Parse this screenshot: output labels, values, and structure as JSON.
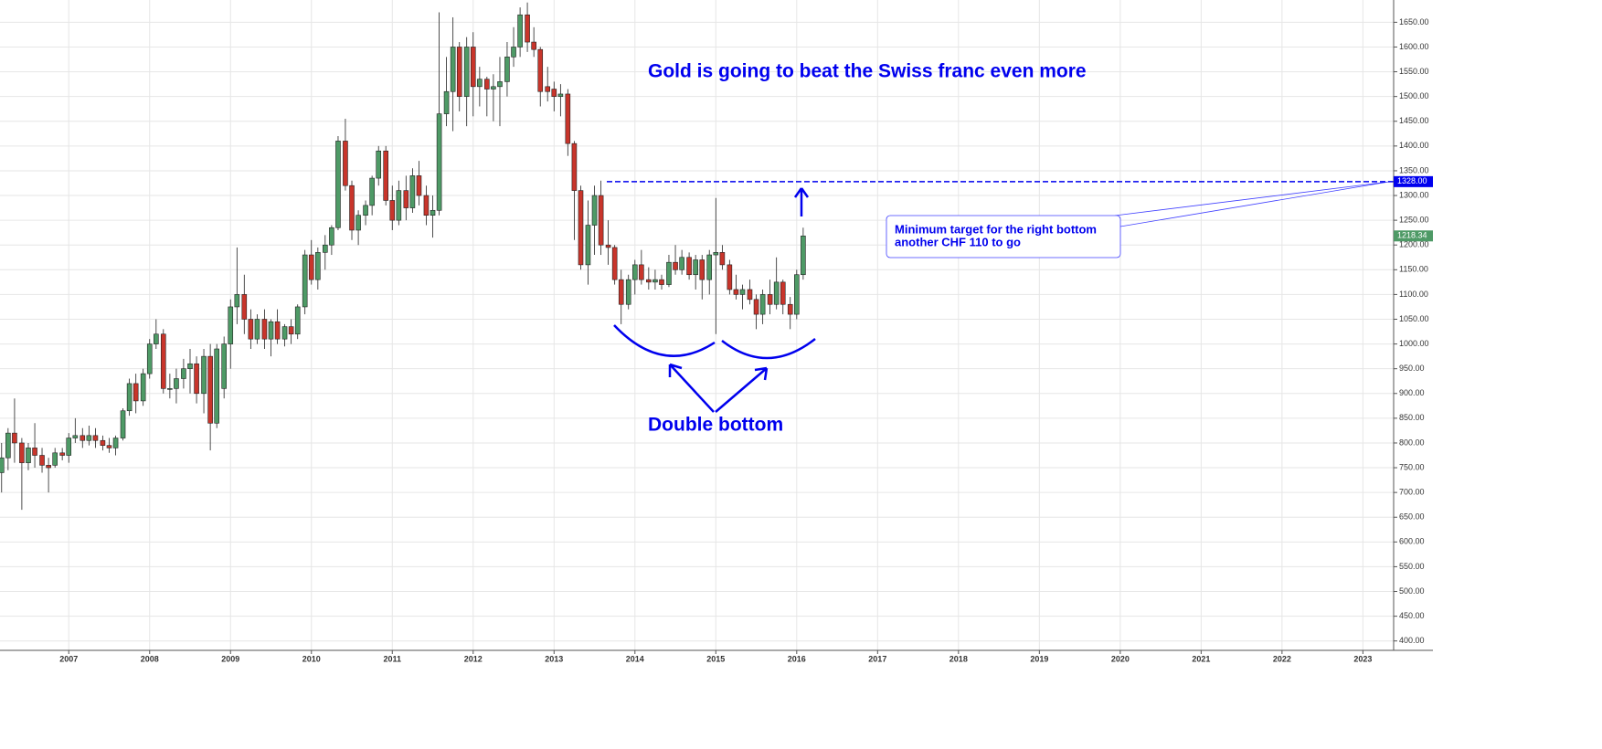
{
  "chart_data": {
    "type": "candlestick",
    "title": "Gold is going to beat the Swiss franc even more",
    "annotations": {
      "pattern": "Double bottom",
      "target_note": [
        "Minimum target for the right bottom",
        "another CHF 110 to go"
      ]
    },
    "target_line": {
      "value": 1328,
      "label": "1328.00",
      "color": "#0000ee"
    },
    "last_price": {
      "value": 1218.34,
      "label": "1218.34",
      "color": "#4e9a66"
    },
    "up_color": "#4e9a66",
    "down_color": "#c8352b",
    "grid": true,
    "xlim": [
      2006.15,
      2023.38
    ],
    "xticks": [
      2007,
      2008,
      2009,
      2010,
      2011,
      2012,
      2013,
      2014,
      2015,
      2016,
      2017,
      2018,
      2019,
      2020,
      2021,
      2022,
      2023
    ],
    "ylim": [
      381,
      1695
    ],
    "yticks": [
      {
        "value": 400,
        "label": "400.00"
      },
      {
        "value": 450,
        "label": "450.00"
      },
      {
        "value": 500,
        "label": "500.00"
      },
      {
        "value": 550,
        "label": "550.00"
      },
      {
        "value": 600,
        "label": "600.00"
      },
      {
        "value": 650,
        "label": "650.00"
      },
      {
        "value": 700,
        "label": "700.00"
      },
      {
        "value": 750,
        "label": "750.00"
      },
      {
        "value": 800,
        "label": "800.00"
      },
      {
        "value": 850,
        "label": "850.00"
      },
      {
        "value": 900,
        "label": "900.00"
      },
      {
        "value": 950,
        "label": "950.00"
      },
      {
        "value": 1000,
        "label": "1000.00"
      },
      {
        "value": 1050,
        "label": "1050.00"
      },
      {
        "value": 1100,
        "label": "1100.00"
      },
      {
        "value": 1150,
        "label": "1150.00"
      },
      {
        "value": 1200,
        "label": "1200.00"
      },
      {
        "value": 1250,
        "label": "1250.00"
      },
      {
        "value": 1300,
        "label": "1300.00"
      },
      {
        "value": 1350,
        "label": "1350.00"
      },
      {
        "value": 1400,
        "label": "1400.00"
      },
      {
        "value": 1450,
        "label": "1450.00"
      },
      {
        "value": 1500,
        "label": "1500.00"
      },
      {
        "value": 1550,
        "label": "1550.00"
      },
      {
        "value": 1600,
        "label": "1600.00"
      },
      {
        "value": 1650,
        "label": "1650.00"
      }
    ],
    "x": [
      2006.17,
      2006.25,
      2006.33,
      2006.42,
      2006.5,
      2006.58,
      2006.67,
      2006.75,
      2006.83,
      2006.92,
      2007.0,
      2007.08,
      2007.17,
      2007.25,
      2007.33,
      2007.42,
      2007.5,
      2007.58,
      2007.67,
      2007.75,
      2007.83,
      2007.92,
      2008.0,
      2008.08,
      2008.17,
      2008.25,
      2008.33,
      2008.42,
      2008.5,
      2008.58,
      2008.67,
      2008.75,
      2008.83,
      2008.92,
      2009.0,
      2009.08,
      2009.17,
      2009.25,
      2009.33,
      2009.42,
      2009.5,
      2009.58,
      2009.67,
      2009.75,
      2009.83,
      2009.92,
      2010.0,
      2010.08,
      2010.17,
      2010.25,
      2010.33,
      2010.42,
      2010.5,
      2010.58,
      2010.67,
      2010.75,
      2010.83,
      2010.92,
      2011.0,
      2011.08,
      2011.17,
      2011.25,
      2011.33,
      2011.42,
      2011.5,
      2011.58,
      2011.67,
      2011.75,
      2011.83,
      2011.92,
      2012.0,
      2012.08,
      2012.17,
      2012.25,
      2012.33,
      2012.42,
      2012.5,
      2012.58,
      2012.67,
      2012.75,
      2012.83,
      2012.92,
      2013.0,
      2013.08,
      2013.17,
      2013.25,
      2013.33,
      2013.42,
      2013.5,
      2013.58,
      2013.67,
      2013.75,
      2013.83,
      2013.92,
      2014.0,
      2014.08,
      2014.17,
      2014.25,
      2014.33,
      2014.42,
      2014.5,
      2014.58,
      2014.67,
      2014.75,
      2014.83,
      2014.92,
      2015.0,
      2015.08,
      2015.17,
      2015.25,
      2015.33,
      2015.42,
      2015.5,
      2015.58,
      2015.67,
      2015.75,
      2015.83,
      2015.92,
      2016.0,
      2016.08
    ],
    "open": [
      740,
      770,
      820,
      800,
      760,
      790,
      775,
      755,
      755,
      780,
      775,
      810,
      815,
      805,
      815,
      805,
      795,
      790,
      810,
      865,
      920,
      885,
      940,
      1000,
      1020,
      910,
      910,
      930,
      950,
      960,
      900,
      975,
      840,
      910,
      1000,
      1075,
      1100,
      1050,
      1010,
      1050,
      1010,
      1045,
      1010,
      1035,
      1020,
      1075,
      1180,
      1130,
      1185,
      1200,
      1235,
      1410,
      1320,
      1230,
      1260,
      1280,
      1335,
      1390,
      1290,
      1250,
      1310,
      1275,
      1340,
      1300,
      1260,
      1270,
      1465,
      1510,
      1600,
      1500,
      1600,
      1520,
      1535,
      1515,
      1520,
      1530,
      1580,
      1600,
      1665,
      1610,
      1595,
      1520,
      1515,
      1500,
      1505,
      1405,
      1310,
      1160,
      1240,
      1300,
      1200,
      1195,
      1130,
      1080,
      1130,
      1160,
      1130,
      1125,
      1130,
      1120,
      1165,
      1150,
      1175,
      1140,
      1170,
      1130,
      1180,
      1185,
      1160,
      1110,
      1100,
      1110,
      1090,
      1060,
      1100,
      1080,
      1125,
      1080,
      1060,
      1140
    ],
    "high": [
      800,
      830,
      890,
      810,
      800,
      840,
      790,
      770,
      790,
      790,
      820,
      850,
      830,
      835,
      830,
      815,
      810,
      815,
      870,
      930,
      940,
      950,
      1010,
      1050,
      1030,
      940,
      950,
      970,
      990,
      975,
      990,
      1000,
      1000,
      1015,
      1090,
      1195,
      1140,
      1070,
      1060,
      1070,
      1050,
      1070,
      1040,
      1050,
      1080,
      1190,
      1210,
      1195,
      1220,
      1240,
      1420,
      1455,
      1330,
      1270,
      1290,
      1340,
      1400,
      1400,
      1320,
      1330,
      1340,
      1355,
      1370,
      1320,
      1300,
      1670,
      1580,
      1660,
      1610,
      1620,
      1630,
      1560,
      1540,
      1545,
      1580,
      1610,
      1640,
      1680,
      1690,
      1640,
      1600,
      1560,
      1530,
      1525,
      1515,
      1410,
      1320,
      1290,
      1320,
      1330,
      1250,
      1200,
      1150,
      1140,
      1170,
      1190,
      1155,
      1150,
      1140,
      1180,
      1200,
      1190,
      1185,
      1180,
      1180,
      1190,
      1295,
      1200,
      1170,
      1140,
      1120,
      1130,
      1100,
      1110,
      1130,
      1175,
      1130,
      1095,
      1150,
      1235
    ],
    "low": [
      700,
      745,
      760,
      665,
      745,
      750,
      740,
      700,
      750,
      765,
      760,
      800,
      790,
      795,
      790,
      785,
      780,
      775,
      805,
      855,
      860,
      875,
      930,
      990,
      900,
      890,
      880,
      910,
      900,
      880,
      860,
      785,
      830,
      890,
      950,
      1040,
      1020,
      990,
      1000,
      990,
      975,
      1000,
      995,
      1000,
      1010,
      1060,
      1120,
      1110,
      1150,
      1180,
      1230,
      1310,
      1210,
      1200,
      1240,
      1260,
      1320,
      1280,
      1230,
      1240,
      1250,
      1265,
      1280,
      1240,
      1215,
      1260,
      1440,
      1430,
      1470,
      1440,
      1460,
      1480,
      1460,
      1450,
      1440,
      1500,
      1560,
      1580,
      1590,
      1580,
      1480,
      1490,
      1470,
      1460,
      1380,
      1210,
      1150,
      1120,
      1180,
      1180,
      1160,
      1120,
      1040,
      1070,
      1100,
      1120,
      1110,
      1110,
      1110,
      1115,
      1140,
      1140,
      1130,
      1110,
      1090,
      1100,
      1020,
      1150,
      1100,
      1090,
      1070,
      1080,
      1030,
      1040,
      1060,
      1070,
      1060,
      1030,
      1050,
      1130
    ],
    "close": [
      770,
      820,
      800,
      760,
      790,
      775,
      755,
      750,
      780,
      775,
      810,
      815,
      805,
      815,
      805,
      795,
      790,
      810,
      865,
      920,
      885,
      940,
      1000,
      1020,
      910,
      910,
      930,
      950,
      960,
      900,
      975,
      840,
      990,
      1000,
      1075,
      1100,
      1050,
      1010,
      1050,
      1010,
      1045,
      1010,
      1035,
      1020,
      1075,
      1180,
      1130,
      1185,
      1200,
      1235,
      1410,
      1320,
      1230,
      1260,
      1280,
      1335,
      1390,
      1290,
      1250,
      1310,
      1275,
      1340,
      1300,
      1260,
      1270,
      1465,
      1510,
      1600,
      1500,
      1600,
      1520,
      1535,
      1515,
      1520,
      1530,
      1580,
      1600,
      1665,
      1610,
      1595,
      1510,
      1510,
      1500,
      1505,
      1405,
      1310,
      1160,
      1240,
      1300,
      1200,
      1195,
      1130,
      1080,
      1130,
      1160,
      1130,
      1125,
      1130,
      1120,
      1165,
      1150,
      1175,
      1140,
      1170,
      1130,
      1180,
      1185,
      1160,
      1110,
      1100,
      1110,
      1090,
      1060,
      1100,
      1080,
      1125,
      1080,
      1060,
      1140,
      1218.34
    ]
  }
}
